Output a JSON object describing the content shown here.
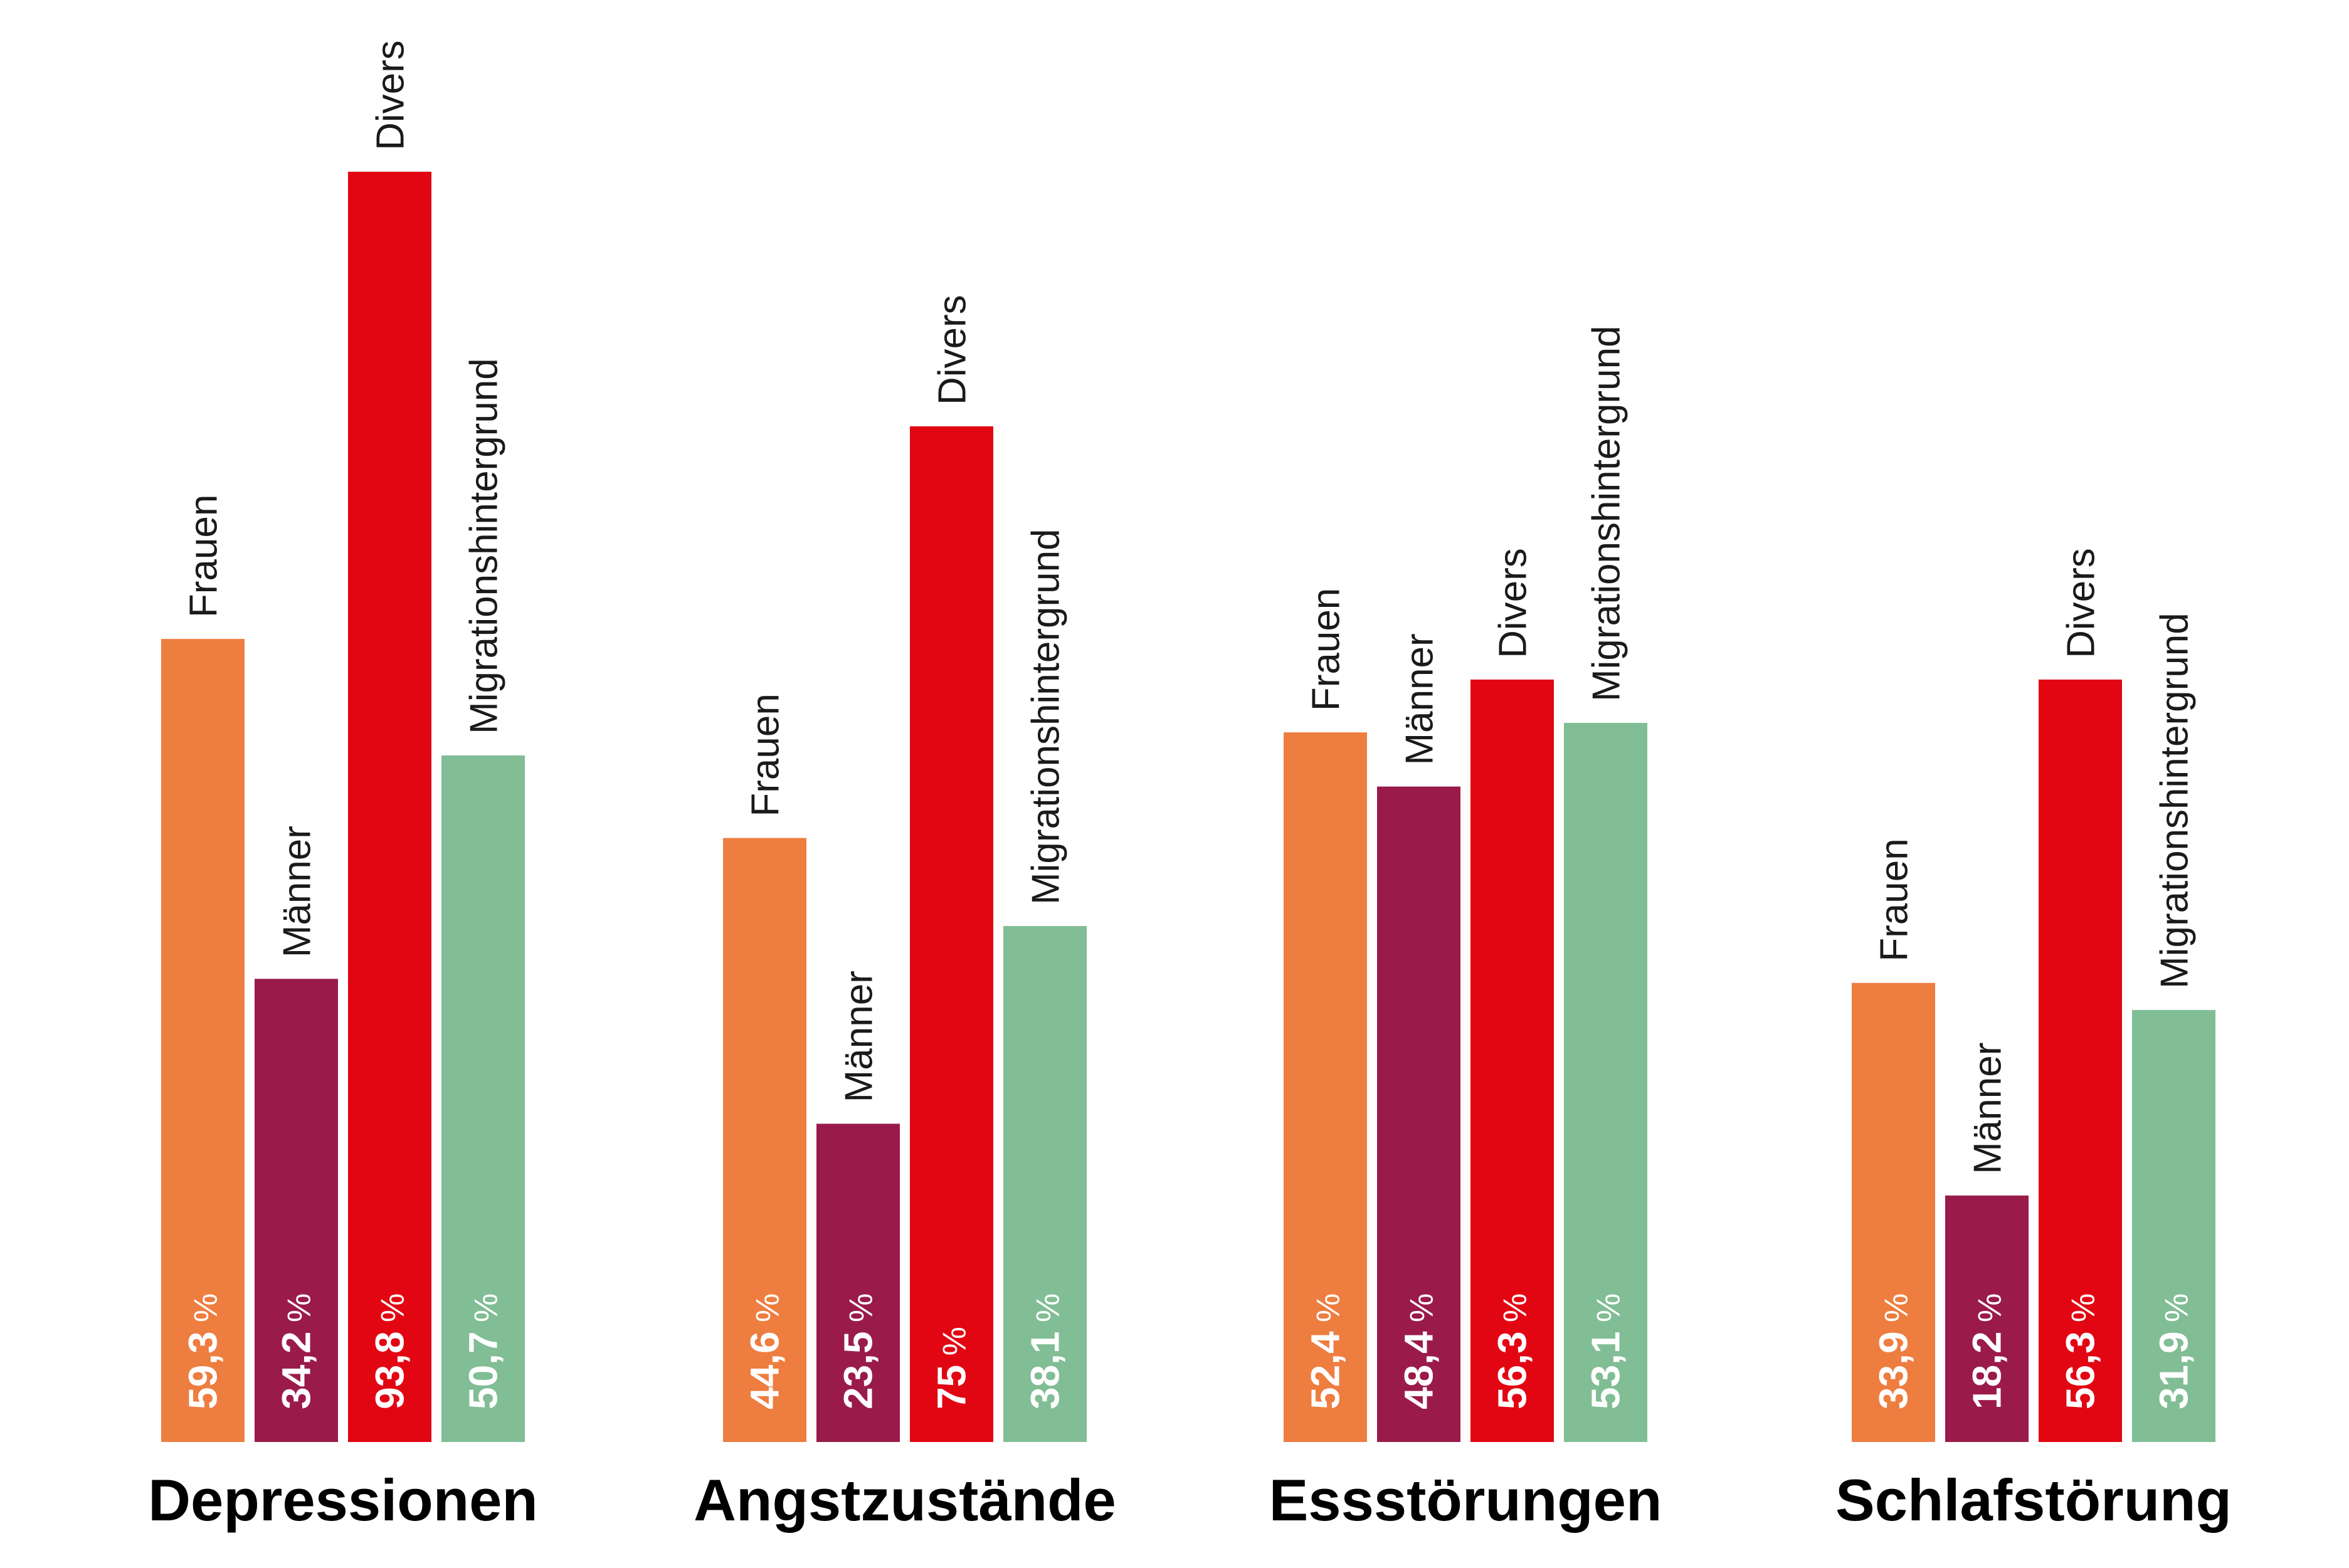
{
  "chart_data": {
    "type": "bar",
    "title": "",
    "xlabel": "",
    "ylabel": "",
    "ylim": [
      0,
      100
    ],
    "grid": false,
    "legend": "none (series names printed vertically above each bar)",
    "categories": [
      "Depressionen",
      "Angstzustände",
      "Essstörungen",
      "Schlafstörung"
    ],
    "unit": "%",
    "series": [
      {
        "name": "Frauen",
        "color": "#EE7D40",
        "values": [
          59.3,
          44.6,
          52.4,
          33.9
        ],
        "labels": [
          "59,3",
          "44,6",
          "52,4",
          "33,9"
        ]
      },
      {
        "name": "Männer",
        "color": "#9A1B4A",
        "values": [
          34.2,
          23.5,
          48.4,
          18.2
        ],
        "labels": [
          "34,2",
          "23,5",
          "48,4",
          "18,2"
        ]
      },
      {
        "name": "Divers",
        "color": "#E20613",
        "values": [
          93.8,
          75,
          56.3,
          56.3
        ],
        "labels": [
          "93,8",
          "75",
          "56,3",
          "56,3"
        ]
      },
      {
        "name": "Migrationshintergrund",
        "color": "#81BD95",
        "values": [
          50.7,
          38.1,
          53.1,
          31.9
        ],
        "labels": [
          "50,7",
          "38,1",
          "53,1",
          "31,9"
        ]
      }
    ]
  }
}
